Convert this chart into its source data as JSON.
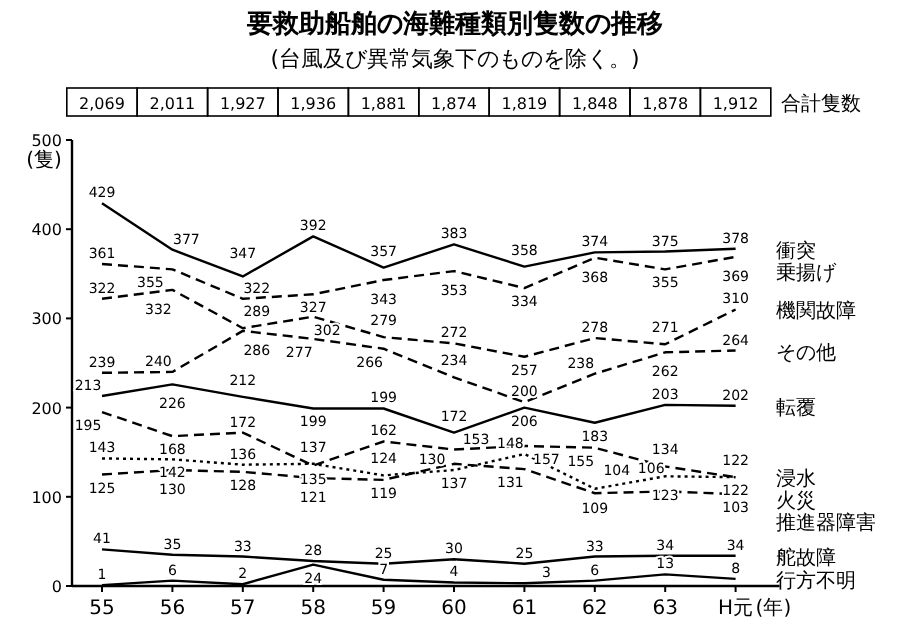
{
  "chart_data": {
    "type": "line",
    "title": "要救助船舶の海難種類別隻数の推移",
    "subtitle": "(台風及び異常気象下のものを除く。)",
    "ylabel": "(隻)",
    "xlabel": "(年)",
    "categories": [
      "55",
      "56",
      "57",
      "58",
      "59",
      "60",
      "61",
      "62",
      "63",
      "H元"
    ],
    "ylim": [
      0,
      500
    ],
    "yticks": [
      0,
      100,
      200,
      300,
      400,
      500
    ],
    "grid": false,
    "data_labels": true,
    "marker": "none",
    "totals": [
      "2,069",
      "2,011",
      "1,927",
      "1,936",
      "1,881",
      "1,874",
      "1,819",
      "1,848",
      "1,878",
      "1,912"
    ],
    "annotations": [
      "合計隻数"
    ],
    "series": [
      {
        "name": "衝突",
        "color": "#000000",
        "line_style": "solid",
        "values": [
          429,
          377,
          347,
          392,
          357,
          383,
          358,
          374,
          375,
          378
        ]
      },
      {
        "name": "乗揚げ",
        "color": "#000000",
        "line_style": "dashed",
        "values": [
          361,
          355,
          322,
          327,
          343,
          353,
          334,
          368,
          355,
          369
        ]
      },
      {
        "name": "機関故障",
        "color": "#000000",
        "line_style": "dashed",
        "values": [
          322,
          332,
          289,
          302,
          279,
          272,
          257,
          278,
          271,
          310
        ]
      },
      {
        "name": "その他",
        "color": "#000000",
        "line_style": "dashed",
        "values": [
          239,
          240,
          286,
          277,
          266,
          234,
          206,
          238,
          262,
          264
        ]
      },
      {
        "name": "転覆",
        "color": "#000000",
        "line_style": "solid",
        "values": [
          213,
          226,
          212,
          199,
          199,
          172,
          200,
          183,
          203,
          202
        ]
      },
      {
        "name": "浸水",
        "color": "#000000",
        "line_style": "dashed",
        "values": [
          195,
          168,
          172,
          135,
          162,
          153,
          157,
          155,
          134,
          122
        ]
      },
      {
        "name": "火災",
        "color": "#000000",
        "line_style": "dotted",
        "values": [
          143,
          142,
          136,
          137,
          124,
          130,
          148,
          109,
          123,
          122
        ]
      },
      {
        "name": "推進器障害",
        "color": "#000000",
        "line_style": "dashed",
        "values": [
          125,
          130,
          128,
          121,
          119,
          137,
          131,
          104,
          106,
          103
        ]
      },
      {
        "name": "舵故障",
        "color": "#000000",
        "line_style": "solid",
        "values": [
          41,
          35,
          33,
          28,
          25,
          30,
          25,
          33,
          34,
          34
        ]
      },
      {
        "name": "行方不明",
        "color": "#000000",
        "line_style": "solid",
        "values": [
          1,
          6,
          2,
          24,
          7,
          4,
          3,
          6,
          13,
          8
        ]
      }
    ]
  }
}
